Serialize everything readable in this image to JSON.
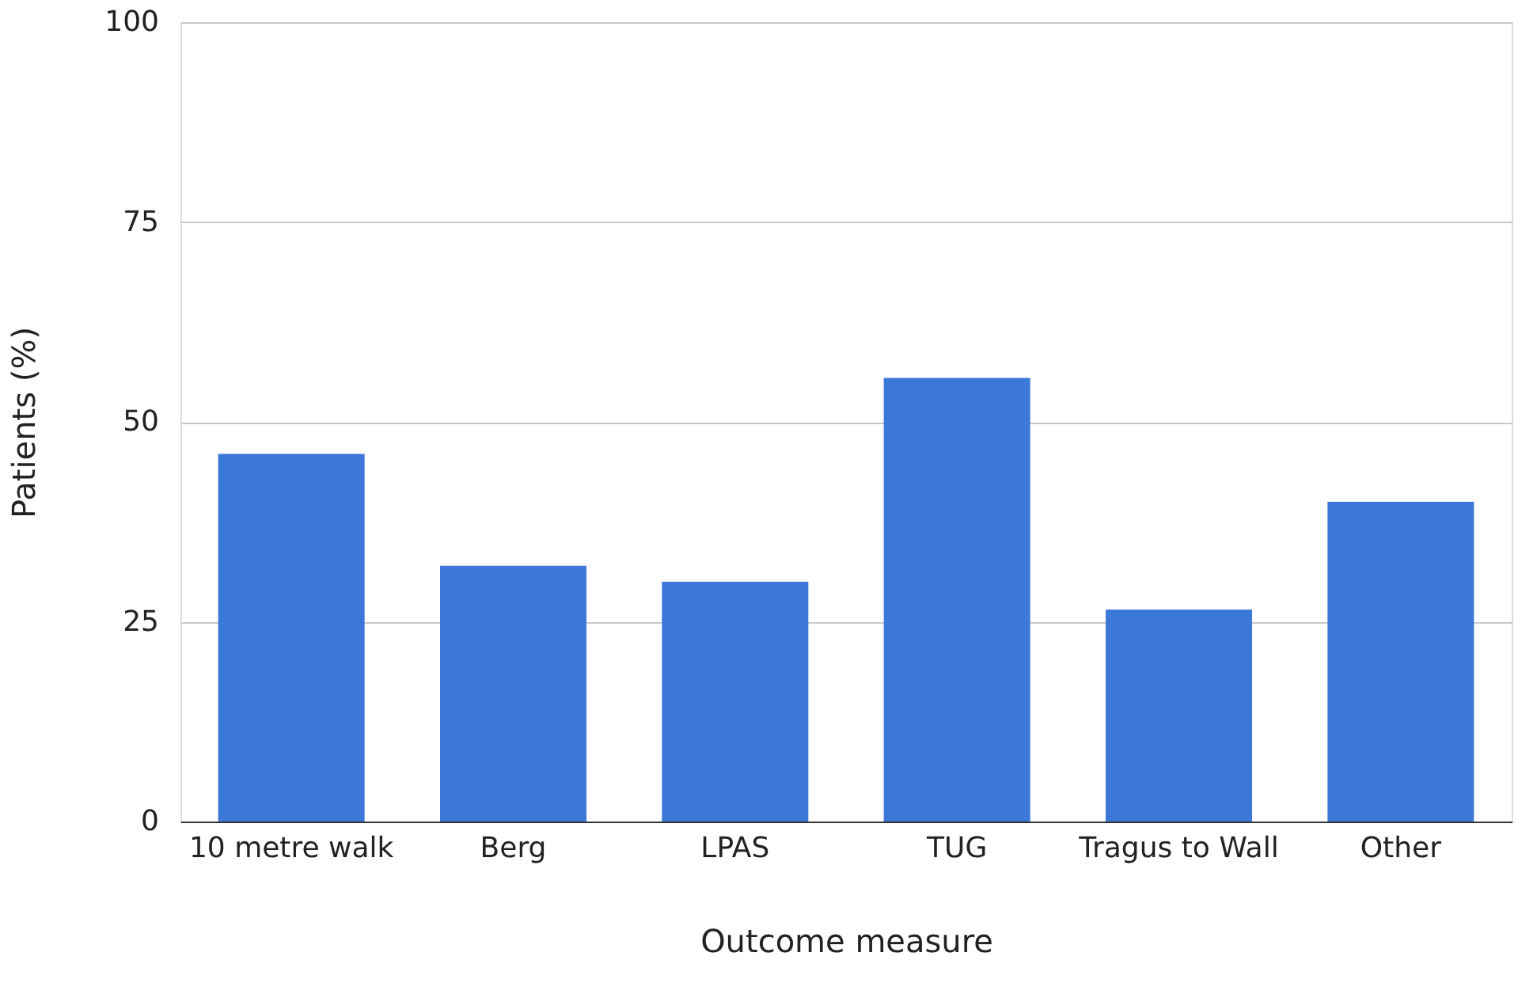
{
  "chart_data": {
    "type": "bar",
    "xlabel": "Outcome measure",
    "ylabel": "Patients (%)",
    "categories": [
      "10 metre walk",
      "Berg",
      "LPAS",
      "TUG",
      "Tragus to Wall",
      "Other"
    ],
    "values": [
      46,
      32,
      30,
      55.5,
      26.5,
      40
    ],
    "color": "#3c78d8",
    "ylim": [
      0,
      100
    ],
    "yticks": [
      0,
      25,
      50,
      75,
      100
    ],
    "grid": "y"
  }
}
